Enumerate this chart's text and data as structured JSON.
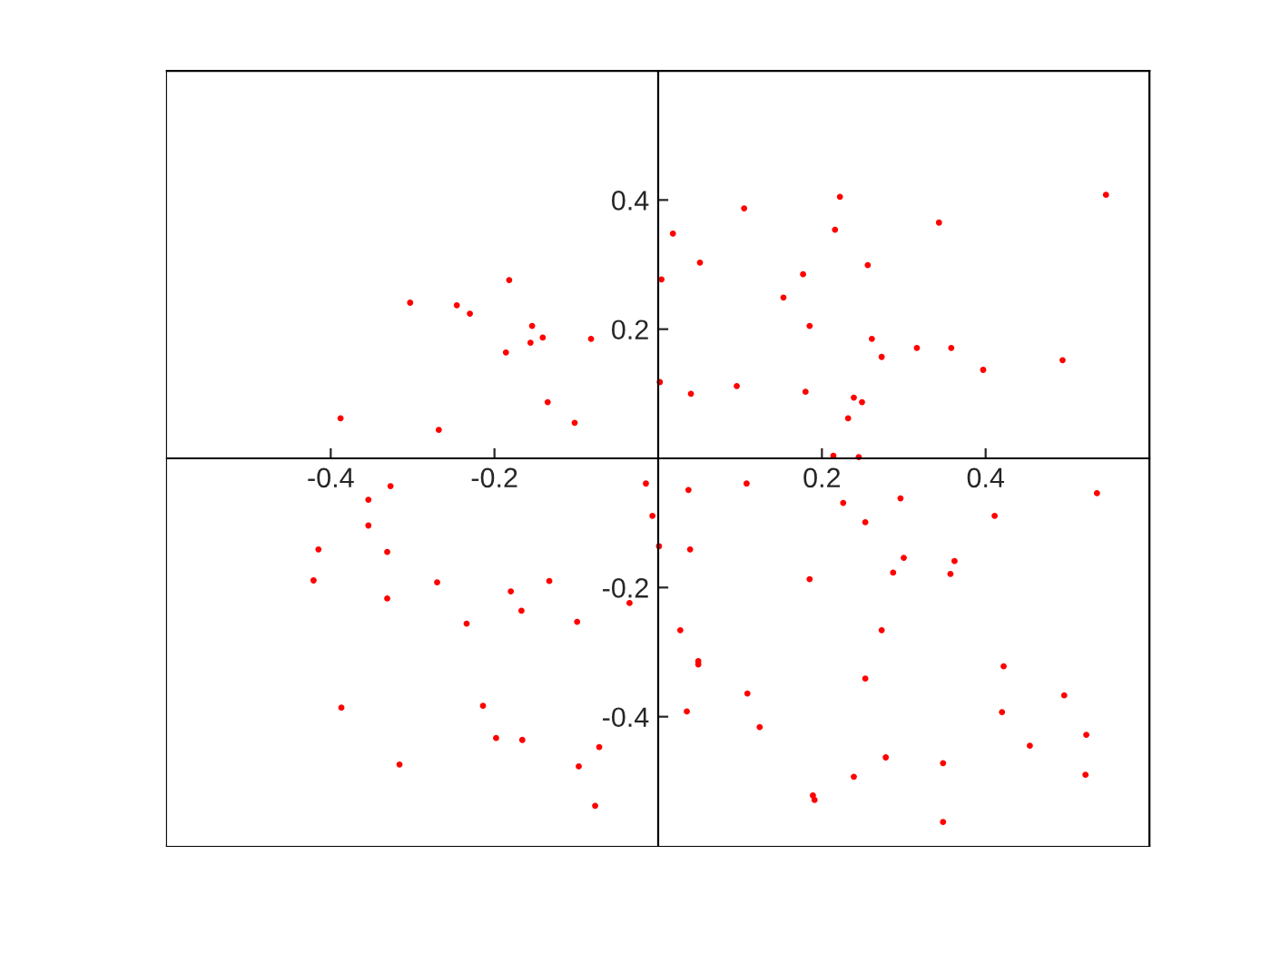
{
  "chart_data": {
    "type": "scatter",
    "color": "#ff0000",
    "marker": "circle",
    "grid": false,
    "xlim": [
      -0.6,
      0.6
    ],
    "ylim": [
      -0.6,
      0.6
    ],
    "xticks": [
      -0.4,
      -0.2,
      0.2,
      0.4
    ],
    "yticks": [
      -0.4,
      -0.2,
      0.2,
      0.4
    ],
    "x": [
      -0.388,
      -0.303,
      -0.268,
      -0.246,
      -0.23,
      -0.182,
      -0.186,
      -0.154,
      -0.156,
      -0.141,
      -0.135,
      -0.102,
      -0.082,
      0.004,
      0.002,
      0.018,
      0.105,
      0.222,
      0.216,
      0.343,
      0.547,
      0.051,
      0.177,
      0.256,
      0.153,
      0.185,
      0.261,
      0.273,
      0.316,
      0.358,
      0.397,
      0.494,
      0.04,
      0.096,
      0.18,
      0.239,
      0.249,
      0.232,
      0.214,
      0.245,
      -0.327,
      -0.354,
      -0.354,
      -0.415,
      -0.331,
      -0.421,
      -0.27,
      -0.331,
      -0.234,
      -0.18,
      -0.167,
      -0.133,
      -0.099,
      -0.035,
      -0.015,
      -0.007,
      0.001,
      -0.387,
      -0.214,
      -0.198,
      -0.166,
      -0.316,
      -0.097,
      -0.072,
      -0.077,
      0.037,
      0.108,
      0.226,
      0.296,
      0.536,
      0.411,
      0.253,
      0.039,
      0.3,
      0.362,
      0.287,
      0.357,
      0.185,
      0.027,
      0.273,
      0.049,
      0.049,
      0.253,
      0.422,
      0.109,
      0.496,
      0.035,
      0.42,
      0.124,
      0.523,
      0.454,
      0.278,
      0.348,
      0.522,
      0.239,
      0.189,
      0.191,
      0.348
    ],
    "values": [
      0.062,
      0.241,
      0.044,
      0.237,
      0.224,
      0.276,
      0.164,
      0.205,
      0.179,
      0.187,
      0.087,
      0.055,
      0.185,
      0.277,
      0.118,
      0.348,
      0.387,
      0.405,
      0.354,
      0.365,
      0.408,
      0.303,
      0.285,
      0.299,
      0.249,
      0.205,
      0.185,
      0.157,
      0.171,
      0.171,
      0.137,
      0.152,
      0.1,
      0.112,
      0.103,
      0.094,
      0.087,
      0.062,
      0.004,
      0.002,
      -0.043,
      -0.064,
      -0.104,
      -0.141,
      -0.145,
      -0.189,
      -0.192,
      -0.217,
      -0.256,
      -0.206,
      -0.236,
      -0.19,
      -0.253,
      -0.224,
      -0.039,
      -0.089,
      -0.136,
      -0.386,
      -0.383,
      -0.433,
      -0.436,
      -0.474,
      -0.477,
      -0.447,
      -0.538,
      -0.049,
      -0.039,
      -0.069,
      -0.062,
      -0.054,
      -0.089,
      -0.099,
      -0.141,
      -0.154,
      -0.159,
      -0.177,
      -0.179,
      -0.187,
      -0.266,
      -0.266,
      -0.314,
      -0.319,
      -0.341,
      -0.322,
      -0.364,
      -0.367,
      -0.392,
      -0.393,
      -0.416,
      -0.428,
      -0.445,
      -0.463,
      -0.472,
      -0.49,
      -0.493,
      -0.522,
      -0.529,
      -0.563
    ]
  }
}
